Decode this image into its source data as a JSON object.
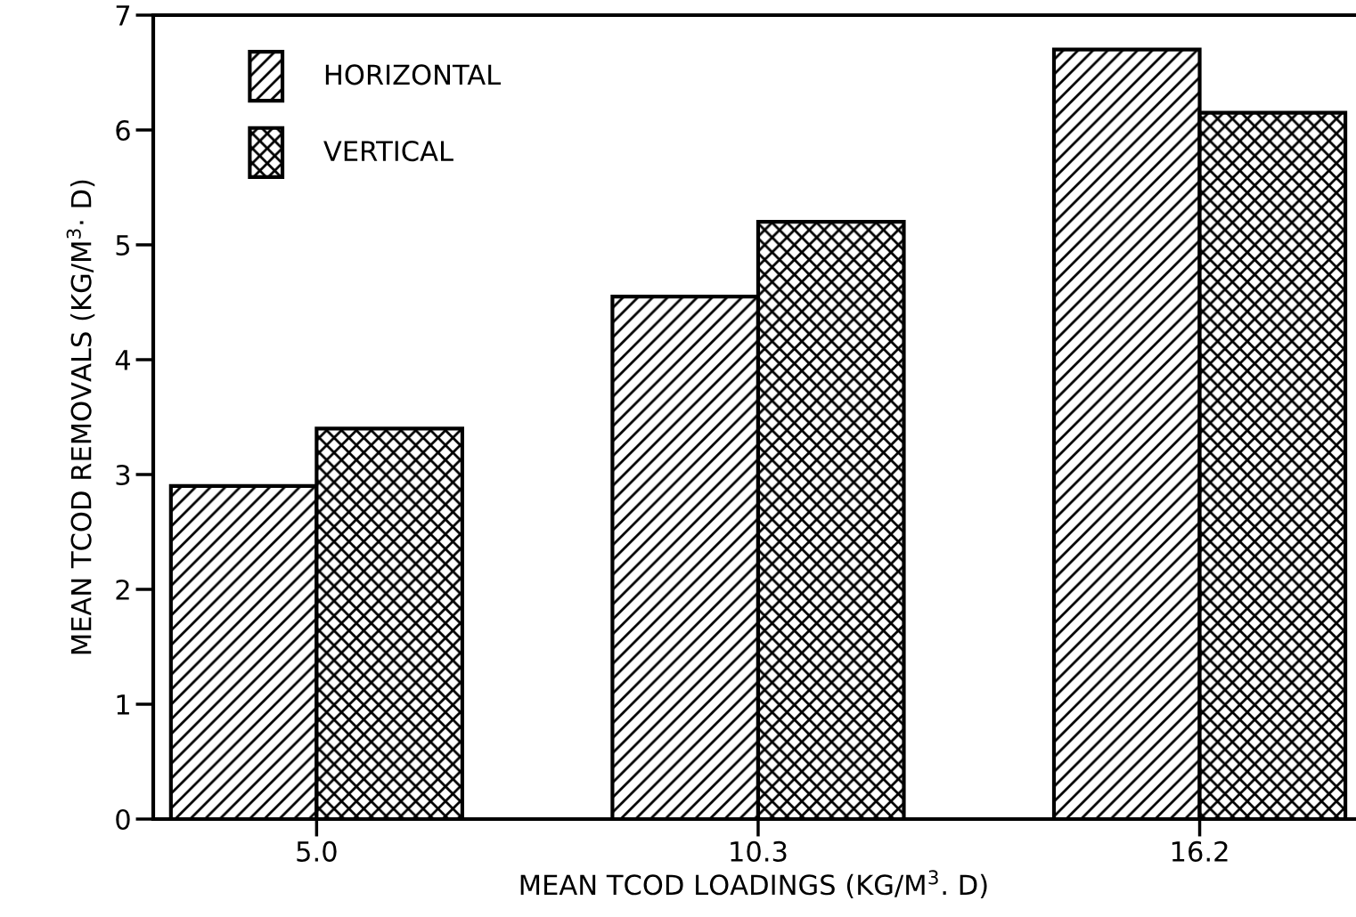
{
  "chart_data": {
    "type": "bar",
    "xlabel": "MEAN TCOD LOADINGS (KG/M$^{3}$. D)",
    "ylabel": "MEAN TCOD REMOVALS (KG/M$^{3}$· D)",
    "categories": [
      "5.0",
      "10.3",
      "16.2"
    ],
    "series": [
      {
        "name": "HORIZONTAL",
        "color": "#000000",
        "values": [
          2.9,
          4.55,
          6.7
        ]
      },
      {
        "name": "VERTICAL",
        "color": "#000000",
        "values": [
          3.4,
          5.2,
          6.15
        ]
      }
    ],
    "ylim": [
      0,
      7
    ],
    "yticks": [
      0,
      1,
      2,
      3,
      4,
      5,
      6,
      7
    ],
    "grid": false,
    "legend": "top left"
  }
}
